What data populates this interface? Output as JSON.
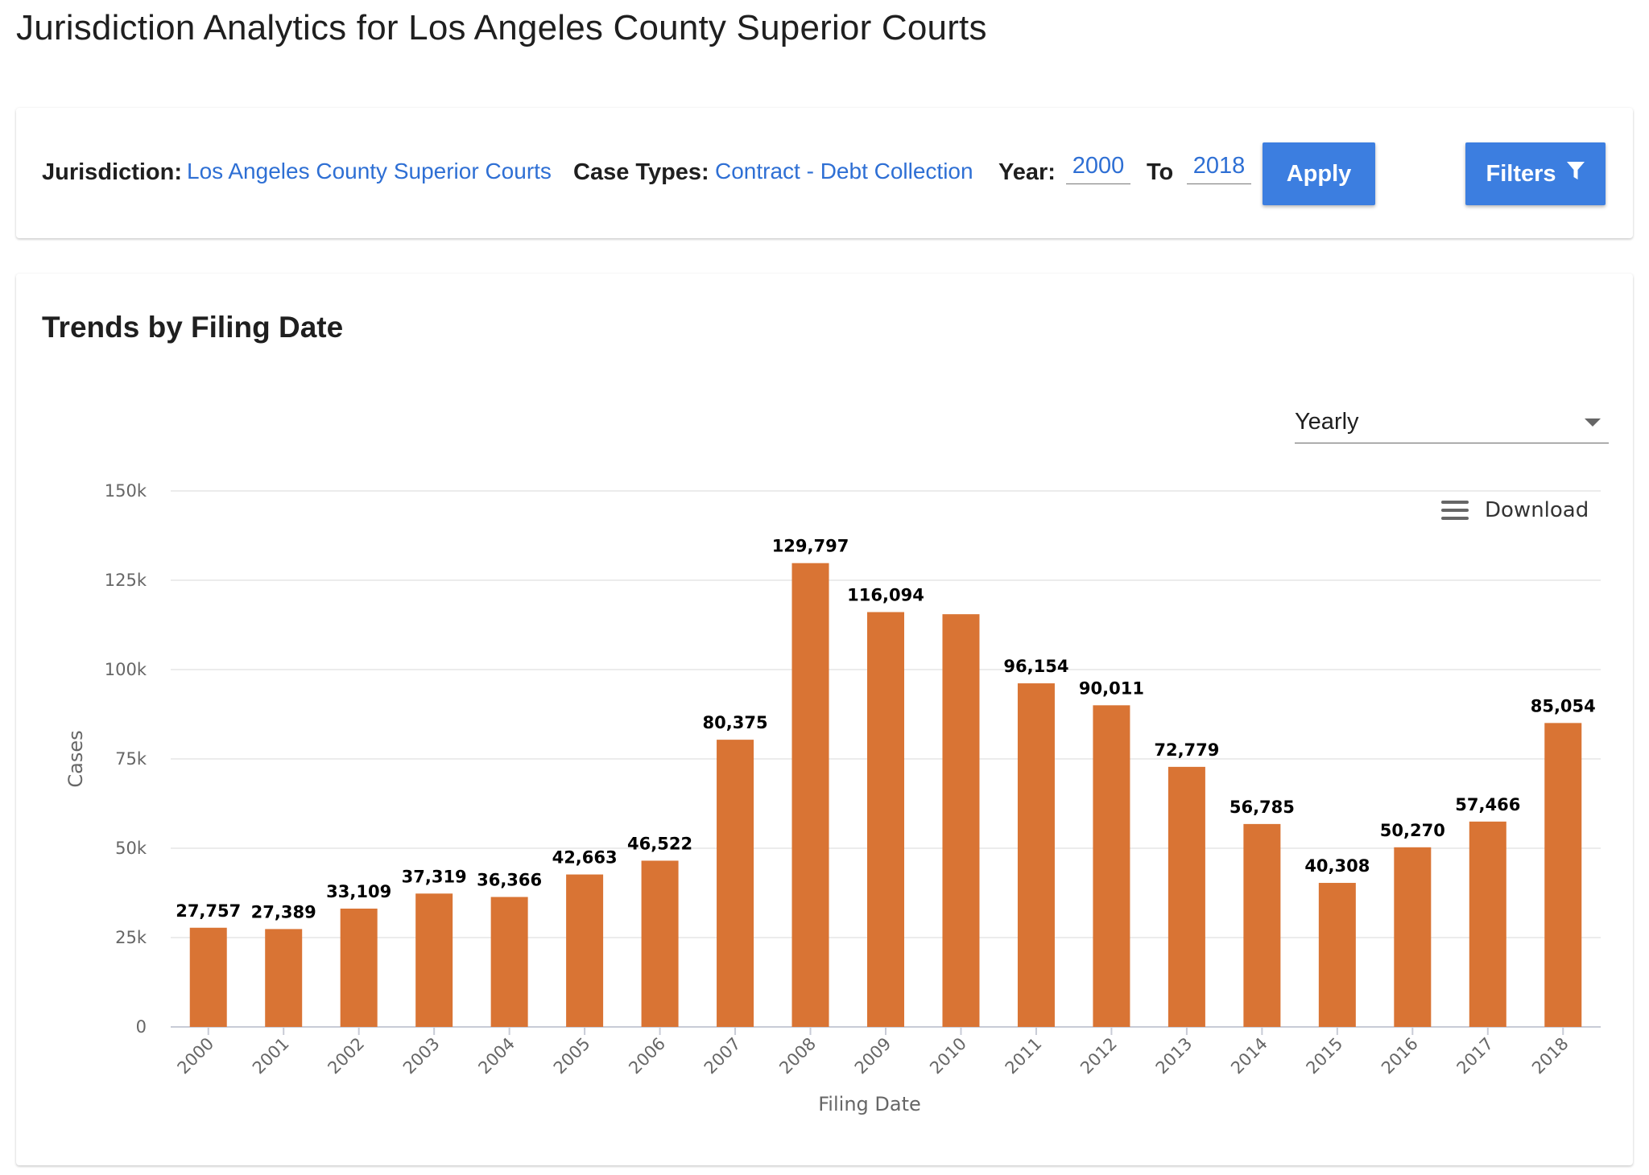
{
  "page": {
    "title": "Jurisdiction Analytics for Los Angeles County Superior Courts"
  },
  "filters": {
    "jurisdiction_label": "Jurisdiction:",
    "jurisdiction_value": "Los Angeles County Superior Courts",
    "case_types_label": "Case Types:",
    "case_types_value": "Contract - Debt Collection",
    "year_label": "Year:",
    "year_from": "2000",
    "to_label": "To",
    "year_to": "2018",
    "apply_label": "Apply",
    "filters_label": "Filters",
    "filters_icon": "funnel-icon"
  },
  "chart_section": {
    "title": "Trends by Filing Date",
    "granularity": "Yearly",
    "download_label": "Download",
    "download_icon": "menu-icon"
  },
  "chart_data": {
    "type": "bar",
    "categories": [
      "2000",
      "2001",
      "2002",
      "2003",
      "2004",
      "2005",
      "2006",
      "2007",
      "2008",
      "2009",
      "2010",
      "2011",
      "2012",
      "2013",
      "2014",
      "2015",
      "2016",
      "2017",
      "2018"
    ],
    "values": [
      27757,
      27389,
      33109,
      37319,
      36366,
      42663,
      46522,
      80375,
      129797,
      116094,
      115500,
      96154,
      90011,
      72779,
      56785,
      40308,
      50270,
      57466,
      85054
    ],
    "data_labels": [
      "27,757",
      "27,389",
      "33,109",
      "37,319",
      "36,366",
      "42,663",
      "46,522",
      "80,375",
      "129,797",
      "116,094",
      "",
      "96,154",
      "90,011",
      "72,779",
      "56,785",
      "40,308",
      "50,270",
      "57,466",
      "85,054"
    ],
    "xlabel": "Filing Date",
    "ylabel": "Cases",
    "ylim": [
      0,
      150000
    ],
    "y_ticks": [
      0,
      25000,
      50000,
      75000,
      100000,
      125000,
      150000
    ],
    "y_tick_labels": [
      "0",
      "25k",
      "50k",
      "75k",
      "100k",
      "125k",
      "150k"
    ],
    "grid": true,
    "bar_color": "#d97434"
  }
}
